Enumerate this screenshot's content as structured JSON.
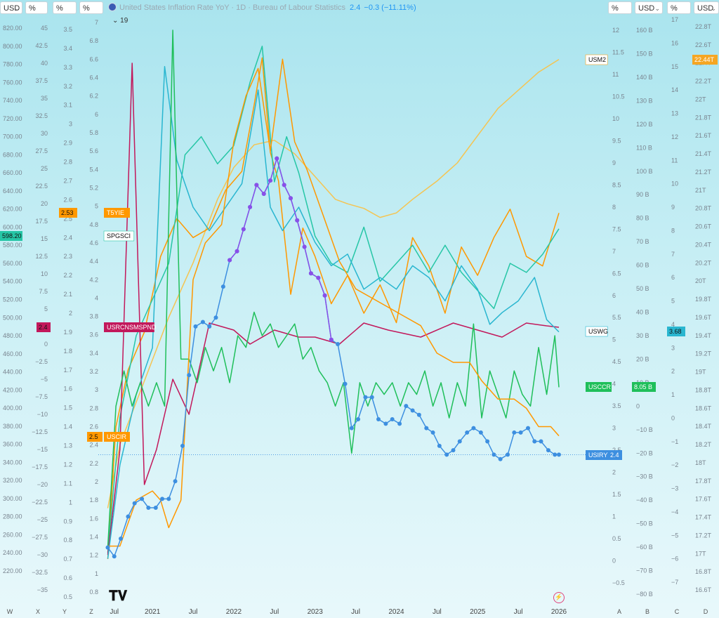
{
  "toolbar": {
    "units_left": [
      "USD",
      "%",
      "%",
      "%"
    ],
    "units_right": [
      "%",
      "USD",
      "%",
      "USD"
    ],
    "title": "United States Inflation Rate YoY · 1D · Bureau of Labour Statistics",
    "value": "2.4",
    "change": "−0.3 (−11.11%)",
    "collapse_count": "19"
  },
  "axes": {
    "W": {
      "letter": "W",
      "ticks": [
        "820.00",
        "800.00",
        "780.00",
        "760.00",
        "740.00",
        "720.00",
        "700.00",
        "680.00",
        "660.00",
        "640.00",
        "620.00",
        "600.00",
        "580.00",
        "560.00",
        "540.00",
        "520.00",
        "500.00",
        "480.00",
        "460.00",
        "440.00",
        "420.00",
        "400.00",
        "380.00",
        "360.00",
        "340.00",
        "320.00",
        "300.00",
        "280.00",
        "260.00",
        "240.00",
        "220.00"
      ]
    },
    "X": {
      "letter": "X",
      "ticks": [
        "45",
        "42.5",
        "40",
        "37.5",
        "35",
        "32.5",
        "30",
        "27.5",
        "25",
        "22.5",
        "20",
        "17.5",
        "15",
        "12.5",
        "10",
        "7.5",
        "5",
        "2.5",
        "0",
        "−2.5",
        "−5",
        "−7.5",
        "−10",
        "−12.5",
        "−15",
        "−17.5",
        "−20",
        "−22.5",
        "−25",
        "−27.5",
        "−30",
        "−32.5",
        "−35"
      ]
    },
    "Y": {
      "letter": "Y",
      "ticks": [
        "3.5",
        "3.4",
        "3.3",
        "3.2",
        "3.1",
        "3",
        "2.9",
        "2.8",
        "2.7",
        "2.6",
        "2.5",
        "2.4",
        "2.3",
        "2.2",
        "2.1",
        "2",
        "1.9",
        "1.8",
        "1.7",
        "1.6",
        "1.5",
        "1.4",
        "1.3",
        "1.2",
        "1.1",
        "1",
        "0.9",
        "0.8",
        "0.7",
        "0.6",
        "0.5"
      ]
    },
    "Z": {
      "letter": "Z",
      "ticks": [
        "7",
        "6.8",
        "6.6",
        "6.4",
        "6.2",
        "6",
        "5.8",
        "5.6",
        "5.4",
        "5.2",
        "5",
        "4.8",
        "4.6",
        "4.4",
        "4.2",
        "4",
        "3.8",
        "3.6",
        "3.4",
        "3.2",
        "3",
        "2.8",
        "2.6",
        "2.4",
        "2.2",
        "2",
        "1.8",
        "1.6",
        "1.4",
        "1.2",
        "1",
        "0.8"
      ]
    },
    "A": {
      "letter": "A",
      "ticks": [
        "12",
        "11.5",
        "11",
        "10.5",
        "10",
        "9.5",
        "9",
        "8.5",
        "8",
        "7.5",
        "7",
        "6.5",
        "6",
        "5.5",
        "5",
        "4.5",
        "4",
        "3.5",
        "3",
        "2.5",
        "2",
        "1.5",
        "1",
        "0.5",
        "0",
        "−0.5"
      ]
    },
    "B": {
      "letter": "B",
      "ticks": [
        "160 B",
        "150 B",
        "140 B",
        "130 B",
        "120 B",
        "110 B",
        "100 B",
        "90 B",
        "80 B",
        "70 B",
        "60 B",
        "50 B",
        "40 B",
        "30 B",
        "20 B",
        "10 B",
        "0",
        "−10 B",
        "−20 B",
        "−30 B",
        "−40 B",
        "−50 B",
        "−60 B",
        "−70 B",
        "−80 B"
      ]
    },
    "C": {
      "letter": "C",
      "ticks": [
        "17",
        "16",
        "15",
        "14",
        "13",
        "12",
        "11",
        "10",
        "9",
        "8",
        "7",
        "6",
        "5",
        "4",
        "3",
        "2",
        "1",
        "0",
        "−1",
        "−2",
        "−3",
        "−4",
        "−5",
        "−6",
        "−7"
      ]
    },
    "D": {
      "letter": "D",
      "ticks": [
        "22.8T",
        "22.6T",
        "22.4T",
        "22.2T",
        "22T",
        "21.8T",
        "21.6T",
        "21.4T",
        "21.2T",
        "21T",
        "20.8T",
        "20.6T",
        "20.4T",
        "20.2T",
        "20T",
        "19.8T",
        "19.6T",
        "19.4T",
        "19.2T",
        "19T",
        "18.8T",
        "18.6T",
        "18.4T",
        "18.2T",
        "18T",
        "17.8T",
        "17.6T",
        "17.4T",
        "17.2T",
        "17T",
        "16.8T",
        "16.6T"
      ]
    }
  },
  "left_badges": [
    {
      "text": "598.20",
      "color": "#26c6a6",
      "axis": "W"
    },
    {
      "text": "2.53",
      "color": "#ff9800",
      "axis": "Y"
    },
    {
      "text": "2.4",
      "color": "#c2185b",
      "axis": "X"
    },
    {
      "text": "2.5",
      "color": "#ff9800",
      "axis": "Z"
    }
  ],
  "right_badges": [
    {
      "text": "22.44T",
      "color": "#f5a623",
      "axis": "D"
    },
    {
      "text": "3.68",
      "color": "#29b6d0",
      "axis": "C"
    },
    {
      "text": "8.05 B",
      "color": "#1fbf5a",
      "axis": "B"
    },
    {
      "text": "2.4",
      "color": "#3d8fe0",
      "axis": "A"
    }
  ],
  "series_labels": [
    {
      "text": "USM2",
      "color": "#f5a623"
    },
    {
      "text": "T5YIE",
      "color": "#ff9800"
    },
    {
      "text": "SPGSCI",
      "color": "#26c6a6"
    },
    {
      "text": "USRCNSMSPND",
      "color": "#c2185b"
    },
    {
      "text": "USWG",
      "color": "#29b6d0"
    },
    {
      "text": "USCCR",
      "color": "#1fbf5a"
    },
    {
      "text": "USCIR",
      "color": "#ff9800"
    },
    {
      "text": "USIRYY",
      "color": "#3d8fe0"
    }
  ],
  "chart_data": {
    "type": "line",
    "title": "United States Inflation Rate YoY",
    "x_ticks": [
      "Jul",
      "2021",
      "Jul",
      "2022",
      "Jul",
      "2023",
      "Jul",
      "2024",
      "Jul",
      "2025",
      "Jul",
      "2026"
    ],
    "x_range": [
      2020.42,
      2026.0
    ],
    "series": [
      {
        "name": "USM2",
        "axis": "D",
        "color": "#f5c451",
        "x": [
          2020.45,
          2020.6,
          2020.9,
          2021.2,
          2021.5,
          2021.8,
          2022.0,
          2022.25,
          2022.5,
          2022.75,
          2023.0,
          2023.25,
          2023.4,
          2023.6,
          2023.8,
          2024.0,
          2024.2,
          2024.5,
          2024.75,
          2025.0,
          2025.25,
          2025.5,
          2025.75,
          2026.0
        ],
        "y": [
          17.5,
          18.2,
          18.9,
          19.6,
          20.2,
          20.9,
          21.25,
          21.5,
          21.55,
          21.4,
          21.15,
          20.9,
          20.85,
          20.8,
          20.7,
          20.75,
          20.9,
          21.1,
          21.3,
          21.6,
          21.9,
          22.1,
          22.3,
          22.44
        ]
      },
      {
        "name": "T5YIE",
        "axis": "Y",
        "color": "#ff9800",
        "x": [
          2020.45,
          2020.55,
          2020.7,
          2020.9,
          2021.1,
          2021.3,
          2021.5,
          2021.7,
          2021.9,
          2022.1,
          2022.25,
          2022.35,
          2022.45,
          2022.55,
          2022.7,
          2022.85,
          2023.0,
          2023.2,
          2023.4,
          2023.6,
          2023.8,
          2024.0,
          2024.2,
          2024.4,
          2024.6,
          2024.8,
          2025.0,
          2025.2,
          2025.4,
          2025.6,
          2025.8,
          2026.0
        ],
        "y": [
          0.7,
          1.4,
          1.7,
          1.9,
          2.3,
          2.5,
          2.4,
          2.45,
          2.65,
          2.75,
          3.1,
          3.35,
          2.85,
          2.7,
          2.1,
          2.45,
          2.3,
          2.05,
          2.2,
          2.0,
          2.15,
          1.95,
          2.4,
          2.25,
          2.0,
          2.35,
          2.2,
          2.4,
          2.55,
          2.3,
          2.25,
          2.53
        ]
      },
      {
        "name": "SPGSCI",
        "axis": "W",
        "color": "#26c6a6",
        "x": [
          2020.45,
          2020.6,
          2020.8,
          2021.0,
          2021.2,
          2021.4,
          2021.6,
          2021.8,
          2022.0,
          2022.2,
          2022.35,
          2022.5,
          2022.65,
          2022.8,
          2023.0,
          2023.2,
          2023.4,
          2023.6,
          2023.8,
          2024.0,
          2024.2,
          2024.4,
          2024.6,
          2024.8,
          2025.0,
          2025.2,
          2025.4,
          2025.6,
          2025.8,
          2026.0
        ],
        "y": [
          240,
          390,
          480,
          520,
          560,
          680,
          700,
          670,
          690,
          760,
          800,
          650,
          700,
          660,
          590,
          560,
          550,
          600,
          540,
          560,
          580,
          550,
          580,
          550,
          530,
          510,
          560,
          550,
          570,
          598.2
        ]
      },
      {
        "name": "USRCNSMSPND",
        "axis": "X",
        "color": "#c2185b",
        "x": [
          2020.45,
          2020.6,
          2020.75,
          2020.9,
          2021.05,
          2021.25,
          2021.45,
          2021.7,
          2022.0,
          2022.2,
          2022.5,
          2022.8,
          2023.0,
          2023.3,
          2023.6,
          2023.9,
          2024.3,
          2024.7,
          2025.0,
          2025.3,
          2025.6,
          2025.85,
          2026.0
        ],
        "y": [
          -30,
          -15,
          40,
          -20,
          -15,
          -5,
          -10,
          3,
          2,
          0,
          2,
          1,
          1,
          0,
          3,
          2,
          1,
          3,
          2,
          1,
          3,
          2.6,
          2.4
        ]
      },
      {
        "name": "USWG",
        "axis": "C",
        "color": "#29b6d0",
        "x": [
          2020.45,
          2020.6,
          2020.8,
          2021.0,
          2021.15,
          2021.3,
          2021.5,
          2021.7,
          2021.9,
          2022.1,
          2022.3,
          2022.45,
          2022.6,
          2022.8,
          2023.0,
          2023.2,
          2023.4,
          2023.6,
          2023.8,
          2024.0,
          2024.2,
          2024.4,
          2024.6,
          2024.8,
          2025.0,
          2025.15,
          2025.3,
          2025.5,
          2025.7,
          2025.85,
          2026.0
        ],
        "y": [
          -6,
          -2,
          1,
          3,
          15,
          11,
          9,
          8,
          9,
          10,
          14,
          9,
          8,
          9,
          7.5,
          6.5,
          7,
          5.5,
          6,
          5.5,
          6.5,
          6,
          5,
          6.5,
          5.5,
          4,
          4.5,
          5,
          6,
          4.2,
          3.68
        ]
      },
      {
        "name": "USCCR",
        "axis": "B",
        "color": "#1fbf5a",
        "x": [
          2020.45,
          2020.55,
          2020.65,
          2020.75,
          2020.85,
          2020.95,
          2021.05,
          2021.15,
          2021.25,
          2021.35,
          2021.45,
          2021.55,
          2021.65,
          2021.75,
          2021.85,
          2021.95,
          2022.05,
          2022.15,
          2022.25,
          2022.35,
          2022.45,
          2022.55,
          2022.65,
          2022.75,
          2022.85,
          2022.95,
          2023.05,
          2023.15,
          2023.25,
          2023.35,
          2023.45,
          2023.55,
          2023.65,
          2023.75,
          2023.85,
          2023.95,
          2024.05,
          2024.15,
          2024.25,
          2024.35,
          2024.45,
          2024.55,
          2024.65,
          2024.75,
          2024.85,
          2024.95,
          2025.05,
          2025.15,
          2025.25,
          2025.35,
          2025.45,
          2025.55,
          2025.65,
          2025.75,
          2025.85,
          2025.95,
          2026.0
        ],
        "y": [
          -60,
          0,
          15,
          0,
          10,
          0,
          10,
          0,
          160,
          20,
          20,
          10,
          25,
          15,
          25,
          10,
          30,
          25,
          40,
          30,
          35,
          25,
          30,
          35,
          20,
          25,
          15,
          10,
          0,
          10,
          -20,
          10,
          0,
          10,
          5,
          10,
          0,
          10,
          5,
          15,
          0,
          10,
          -5,
          10,
          0,
          35,
          -5,
          15,
          5,
          -5,
          15,
          5,
          0,
          25,
          5,
          30,
          8.05
        ]
      },
      {
        "name": "USCIR",
        "axis": "Z",
        "color": "#ff9800",
        "x": [
          2020.45,
          2020.6,
          2020.8,
          2021.0,
          2021.1,
          2021.2,
          2021.35,
          2021.5,
          2021.65,
          2021.85,
          2022.0,
          2022.15,
          2022.3,
          2022.45,
          2022.6,
          2022.75,
          2022.9,
          2023.1,
          2023.3,
          2023.5,
          2023.7,
          2023.9,
          2024.1,
          2024.3,
          2024.5,
          2024.7,
          2024.9,
          2025.05,
          2025.25,
          2025.45,
          2025.6,
          2025.75,
          2025.9,
          2026.0
        ],
        "y": [
          1.3,
          1.3,
          1.8,
          1.9,
          1.8,
          1.5,
          1.8,
          4.2,
          4.6,
          4.8,
          5.7,
          6.2,
          6.5,
          5.6,
          6.6,
          5.7,
          5.4,
          4.9,
          4.4,
          4.1,
          4.0,
          3.9,
          3.8,
          3.7,
          3.4,
          3.3,
          3.3,
          3.1,
          2.9,
          2.9,
          2.8,
          2.6,
          2.6,
          2.5
        ]
      },
      {
        "name": "USIRYY",
        "axis": "A",
        "color": "#3d8fe0",
        "x": [
          2020.45,
          2020.53,
          2020.61,
          2020.7,
          2020.78,
          2020.87,
          2020.95,
          2021.04,
          2021.12,
          2021.2,
          2021.28,
          2021.37,
          2021.45,
          2021.53,
          2021.62,
          2021.7,
          2021.78,
          2021.87,
          2021.95,
          2022.04,
          2022.12,
          2022.2,
          2022.28,
          2022.37,
          2022.45,
          2022.53,
          2022.62,
          2022.7,
          2022.78,
          2022.87,
          2022.95,
          2023.04,
          2023.12,
          2023.2,
          2023.28,
          2023.37,
          2023.45,
          2023.53,
          2023.62,
          2023.7,
          2023.78,
          2023.87,
          2023.95,
          2024.04,
          2024.12,
          2024.2,
          2024.28,
          2024.37,
          2024.45,
          2024.53,
          2024.62,
          2024.7,
          2024.78,
          2024.87,
          2024.95,
          2025.04,
          2025.12,
          2025.2,
          2025.28,
          2025.37,
          2025.45,
          2025.53,
          2025.62,
          2025.7,
          2025.78,
          2025.87,
          2025.95,
          2026.0
        ],
        "y": [
          0.3,
          0.1,
          0.5,
          1.0,
          1.3,
          1.4,
          1.2,
          1.2,
          1.4,
          1.4,
          1.8,
          2.6,
          4.2,
          5.3,
          5.4,
          5.3,
          5.5,
          6.2,
          6.8,
          7.0,
          7.5,
          8.0,
          8.5,
          8.3,
          8.6,
          9.1,
          8.5,
          8.2,
          7.7,
          7.1,
          6.5,
          6.4,
          6.0,
          5.0,
          4.9,
          4.0,
          3.0,
          3.2,
          3.7,
          3.7,
          3.2,
          3.1,
          3.2,
          3.1,
          3.5,
          3.4,
          3.3,
          3.0,
          2.9,
          2.6,
          2.4,
          2.5,
          2.7,
          2.9,
          3.0,
          2.9,
          2.7,
          2.4,
          2.3,
          2.4,
          2.9,
          2.9,
          3.0,
          2.7,
          2.7,
          2.5,
          2.4,
          2.4
        ]
      }
    ]
  }
}
